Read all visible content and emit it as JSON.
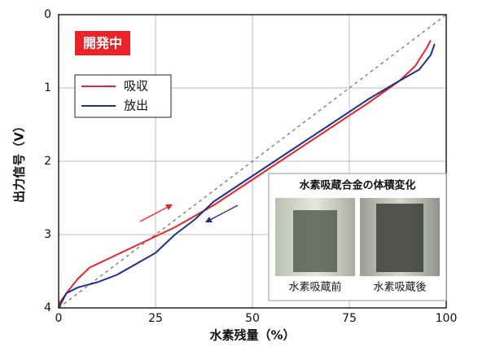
{
  "chart_data": {
    "type": "line",
    "badge": "開発中",
    "xlabel": "水素残量（%）",
    "ylabel": "出力信号（V）",
    "xlim": [
      0,
      100
    ],
    "xticks": [
      0,
      25,
      50,
      75,
      100
    ],
    "ylim": [
      4,
      0
    ],
    "yticks": [
      0,
      1,
      2,
      3,
      4
    ],
    "grid": true,
    "series": [
      {
        "name": "吸収",
        "color": "#e8242a",
        "x": [
          0,
          2,
          5,
          8,
          12,
          20,
          30,
          40,
          50,
          60,
          70,
          80,
          88,
          92,
          95,
          96
        ],
        "values": [
          3.95,
          3.8,
          3.6,
          3.45,
          3.35,
          3.15,
          2.9,
          2.6,
          2.25,
          1.9,
          1.55,
          1.2,
          0.9,
          0.7,
          0.45,
          0.35
        ]
      },
      {
        "name": "放出",
        "color": "#1f2f8c",
        "x": [
          0,
          2,
          5,
          10,
          15,
          20,
          25,
          30,
          35,
          40,
          50,
          60,
          70,
          80,
          88,
          93,
          96,
          97
        ],
        "values": [
          4.0,
          3.8,
          3.72,
          3.65,
          3.55,
          3.4,
          3.25,
          3.0,
          2.8,
          2.55,
          2.2,
          1.85,
          1.5,
          1.15,
          0.9,
          0.75,
          0.55,
          0.4
        ]
      }
    ],
    "inset": {
      "title": "水素吸蔵合金の体積変化",
      "before": "水素吸蔵前",
      "after": "水素吸蔵後"
    }
  }
}
